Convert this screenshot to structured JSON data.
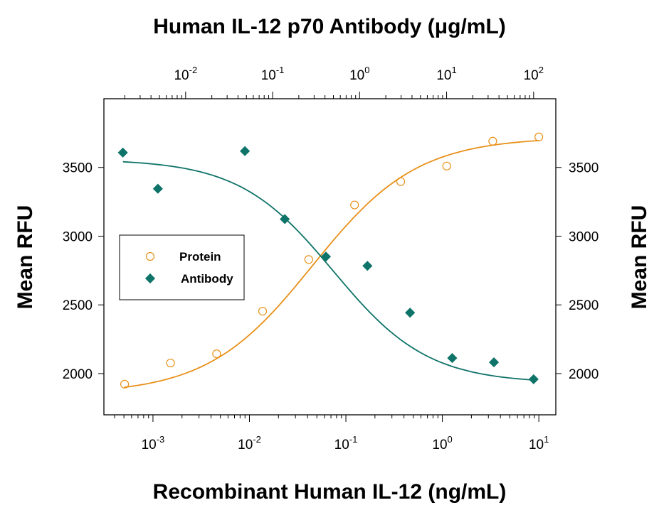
{
  "chart_data": {
    "type": "scatter",
    "title": "Human IL-12 p70 Antibody (μg/mL)",
    "xlabel": "Recombinant Human IL-12 (ng/mL)",
    "x2label": "Human IL-12 p70 Antibody (μg/mL)",
    "ylabel": "Mean RFU",
    "y2label": "Mean RFU",
    "xscale": "log",
    "x2scale": "log",
    "xlim": [
      0.00031,
      15
    ],
    "x2lim": [
      0.00115,
      180
    ],
    "ylim": [
      1700,
      4000
    ],
    "x_ticks": [
      {
        "base": "10",
        "exp": "-3",
        "value": 0.001
      },
      {
        "base": "10",
        "exp": "-2",
        "value": 0.01
      },
      {
        "base": "10",
        "exp": "-1",
        "value": 0.1
      },
      {
        "base": "10",
        "exp": "0",
        "value": 1
      },
      {
        "base": "10",
        "exp": "1",
        "value": 10
      }
    ],
    "x2_ticks": [
      {
        "base": "10",
        "exp": "-2",
        "value": 0.01
      },
      {
        "base": "10",
        "exp": "-1",
        "value": 0.1
      },
      {
        "base": "10",
        "exp": "0",
        "value": 1
      },
      {
        "base": "10",
        "exp": "1",
        "value": 10
      },
      {
        "base": "10",
        "exp": "2",
        "value": 100
      }
    ],
    "y_ticks": [
      "2000",
      "2500",
      "3000",
      "3500"
    ],
    "grid": false,
    "legend": "center-left",
    "series": [
      {
        "name": "Protein",
        "axis": "bottom",
        "marker": "open-circle",
        "color": "#E8901A",
        "x": [
          0.000508,
          0.00152,
          0.00457,
          0.0137,
          0.0412,
          0.123,
          0.37,
          1.11,
          3.33,
          10
        ],
        "y": [
          1923,
          2077,
          2144,
          2454,
          2830,
          3227,
          3397,
          3510,
          3691,
          3722
        ]
      },
      {
        "name": "Antibody",
        "axis": "top",
        "marker": "filled-diamond",
        "color": "#0E7368",
        "x": [
          0.0019,
          0.0048,
          0.048,
          0.138,
          0.41,
          1.23,
          3.8,
          11.6,
          35,
          100
        ],
        "y": [
          3608,
          3345,
          3619,
          3124,
          2851,
          2784,
          2443,
          2113,
          2082,
          1959
        ]
      }
    ]
  }
}
